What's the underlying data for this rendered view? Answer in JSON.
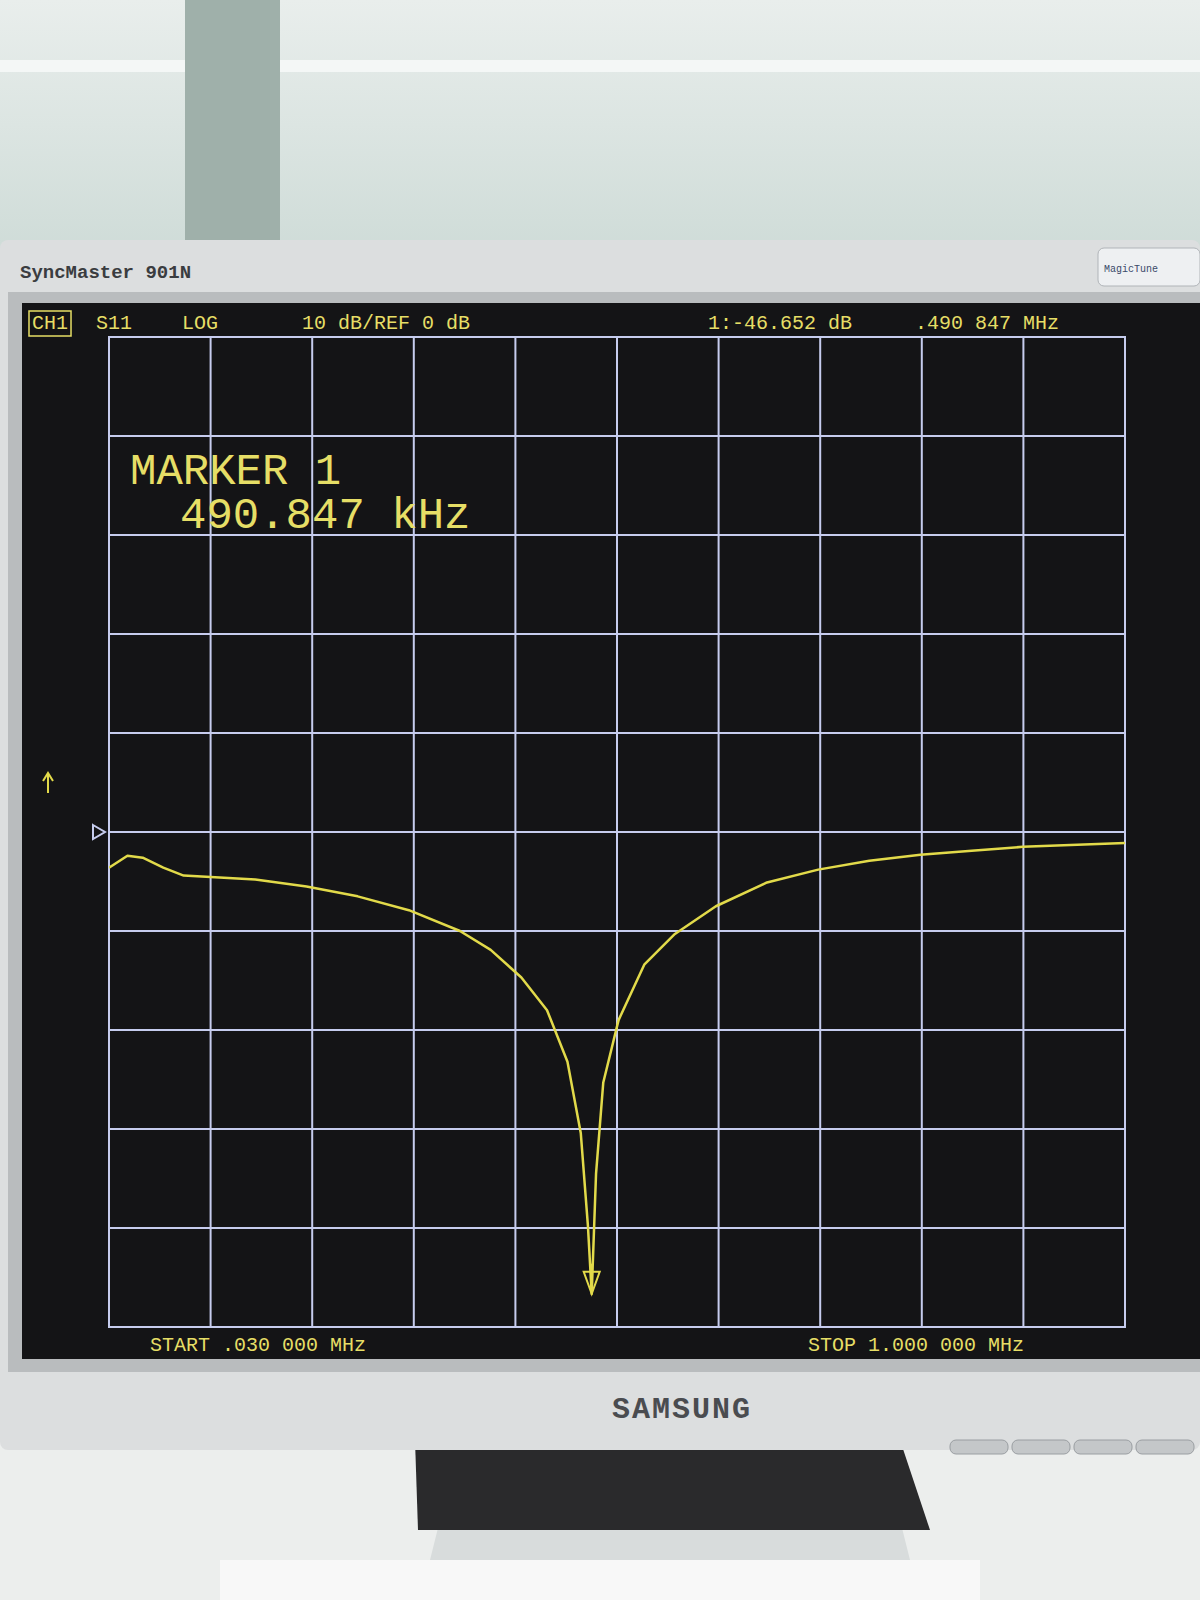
{
  "chart_data": {
    "type": "line",
    "channel": "CH1",
    "title": "S11",
    "scale_label": "LOG",
    "scale_text": "10 dB/REF 0 dB",
    "readout_value": "1:-46.652 dB",
    "readout_freq": ".490 847 MHz",
    "marker_title": "MARKER 1",
    "marker_label": "490.847 kHz",
    "start_label": "START .030 000 MHz",
    "stop_label": "STOP 1.000 000 MHz",
    "ref_level": 0,
    "x": [
      0.03,
      0.0476,
      0.0622,
      0.0818,
      0.1013,
      0.1697,
      0.2186,
      0.2674,
      0.3163,
      0.3651,
      0.3944,
      0.4237,
      0.4482,
      0.4677,
      0.4804,
      0.4872,
      0.490847,
      0.495,
      0.5019,
      0.5165,
      0.541,
      0.5703,
      0.6094,
      0.6582,
      0.7071,
      0.7559,
      0.8047,
      0.8536,
      0.9024,
      1.0
    ],
    "values": [
      -3.6,
      -2.4,
      -2.6,
      -3.6,
      -4.4,
      -4.8,
      -5.5,
      -6.5,
      -7.9,
      -10.0,
      -11.9,
      -14.7,
      -18.0,
      -23.2,
      -30.4,
      -39.7,
      -46.652,
      -34.5,
      -25.3,
      -19.0,
      -13.4,
      -10.3,
      -7.5,
      -5.1,
      -3.8,
      -2.9,
      -2.3,
      -1.9,
      -1.5,
      -1.1
    ],
    "color": "#e2da4a",
    "xlim": [
      0.03,
      1.0
    ],
    "ylim": [
      -50,
      50
    ],
    "xticks": [
      0.03,
      0.127,
      0.224,
      0.321,
      0.418,
      0.515,
      0.612,
      0.709,
      0.806,
      0.903,
      1.0
    ],
    "yticks": [
      -50,
      -40,
      -30,
      -20,
      -10,
      0,
      10,
      20,
      30,
      40,
      50
    ],
    "grid": true,
    "tick_labels": false
  },
  "monitor": {
    "model": "SyncMaster 901N",
    "brand": "SAMSUNG",
    "badge": "MagicTune"
  }
}
